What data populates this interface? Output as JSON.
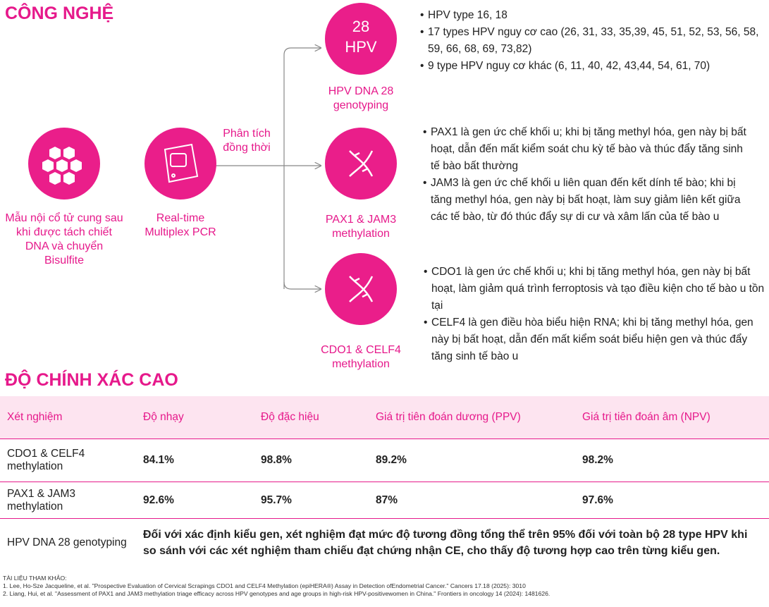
{
  "header": {
    "title": "CÔNG NGHỆ"
  },
  "nodes": [
    {
      "label": "Mẫu nội cổ tử cung sau khi được tách chiết DNA và chuyển Bisulfite"
    },
    {
      "label": "Real-time Multiplex PCR"
    },
    {
      "icon_text": [
        "28",
        "HPV"
      ],
      "label": "HPV DNA 28 genotyping"
    },
    {
      "label": "PAX1 & JAM3 methylation"
    },
    {
      "label": "CDO1 & CELF4 methylation"
    }
  ],
  "flow_label": "Phân tích đồng thời",
  "bullets": [
    [
      "HPV type 16, 18",
      "17 types HPV nguy cơ cao (26, 31, 33, 35,39, 45, 51, 52, 53, 56, 58, 59, 66, 68, 69, 73,82)",
      "9 type HPV nguy cơ khác (6, 11, 40, 42, 43,44, 54, 61, 70)"
    ],
    [
      "PAX1 là gen ức chế khối u; khi bị tăng methyl hóa, gen này bị bất hoạt, dẫn đến mất kiểm soát chu kỳ tế bào và thúc đẩy tăng sinh tế bào bất thường",
      "JAM3 là gen ức chế khối u liên quan đến kết dính tế bào; khi bị tăng methyl hóa, gen này bị bất hoạt, làm suy giảm liên kết giữa các tế bào, từ đó thúc đẩy sự di cư và xâm lấn của tế bào u"
    ],
    [
      "CDO1 là gen ức chế khối u; khi bị tăng methyl hóa, gen này bị bất hoạt, làm giảm quá trình ferroptosis và tạo điều kiện cho tế bào u tồn tại",
      "CELF4 là gen điều hòa biểu hiện RNA; khi bị tăng methyl hóa, gen này bị bất hoạt, dẫn đến mất kiểm soát biểu hiện gen và thúc đẩy tăng sinh tế bào u"
    ]
  ],
  "accuracy": {
    "title": "ĐỘ CHÍNH XÁC CAO",
    "table": {
      "columns": [
        "Xét nghiệm",
        "Độ nhạy",
        "Độ đặc hiệu",
        "Giá trị tiên đoán dương (PPV)",
        "Giá trị tiên đoán âm (NPV)"
      ],
      "rows": [
        [
          "CDO1 & CELF4 methylation",
          "84.1%",
          "98.8%",
          "89.2%",
          "98.2%"
        ],
        [
          "PAX1 & JAM3 methylation",
          "92.6%",
          "95.7%",
          "87%",
          "97.6%"
        ],
        [
          "HPV DNA 28 genotyping",
          "Đối với xác định kiểu gen, xét nghiệm đạt mức độ tương đồng tổng thể trên 95% đối với toàn bộ 28 type HPV khi so sánh với các xét nghiệm tham chiếu đạt chứng nhận CE, cho thấy độ tương hợp cao trên từng kiểu gen."
        ]
      ]
    }
  },
  "references": {
    "title": "TÀI LIỆU THAM KHẢO:",
    "items": [
      "1. Lee, Ho-Sze Jacqueline, et al. \"Prospective Evaluation of Cervical Scrapings CDO1 and CELF4 Methylation (epiHERA®) Assay in Detection ofEndometrial Cancer.\" Cancers 17.18 (2025): 3010",
      "2. Liang, Hui, et al. \"Assessment of PAX1 and JAM3 methylation triage efficacy across HPV genotypes and age groups in high-risk HPV-positivewomen in China.\" Frontiers in oncology 14 (2024): 1481626."
    ]
  }
}
